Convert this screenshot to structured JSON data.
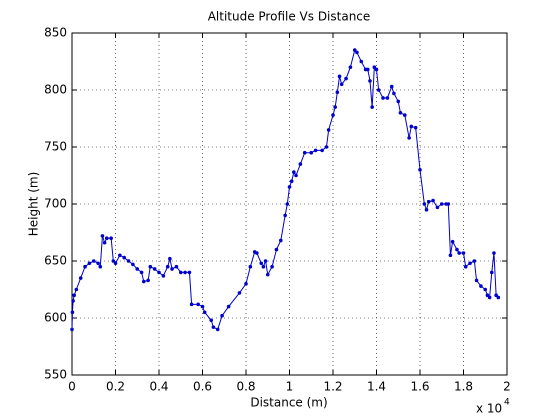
{
  "chart_data": {
    "type": "line",
    "title": "Altitude Profile Vs Distance",
    "x_label": "Distance (m)",
    "y_label": "Height (m)",
    "x_scale_label": {
      "base": "x 10",
      "exponent": "4"
    },
    "xlim": [
      0,
      2
    ],
    "ylim": [
      550,
      850
    ],
    "xticks": [
      0,
      0.2,
      0.4,
      0.6,
      0.8,
      1,
      1.2,
      1.4,
      1.6,
      1.8,
      2
    ],
    "yticks": [
      550,
      600,
      650,
      700,
      750,
      800,
      850
    ],
    "grid": true,
    "series": [
      {
        "color": "#0000cc",
        "x": [
          0,
          0.002,
          0.005,
          0.01,
          0.02,
          0.04,
          0.06,
          0.08,
          0.1,
          0.12,
          0.13,
          0.14,
          0.15,
          0.16,
          0.18,
          0.19,
          0.2,
          0.22,
          0.24,
          0.26,
          0.28,
          0.3,
          0.32,
          0.33,
          0.35,
          0.36,
          0.38,
          0.4,
          0.42,
          0.44,
          0.45,
          0.46,
          0.48,
          0.5,
          0.52,
          0.54,
          0.55,
          0.58,
          0.6,
          0.61,
          0.64,
          0.65,
          0.67,
          0.69,
          0.72,
          0.77,
          0.8,
          0.82,
          0.84,
          0.85,
          0.87,
          0.88,
          0.89,
          0.9,
          0.92,
          0.94,
          0.96,
          0.98,
          0.99,
          1.0,
          1.01,
          1.02,
          1.03,
          1.05,
          1.07,
          1.1,
          1.12,
          1.15,
          1.17,
          1.18,
          1.2,
          1.21,
          1.22,
          1.23,
          1.24,
          1.26,
          1.28,
          1.3,
          1.31,
          1.33,
          1.35,
          1.36,
          1.37,
          1.38,
          1.39,
          1.4,
          1.41,
          1.43,
          1.45,
          1.47,
          1.48,
          1.5,
          1.51,
          1.53,
          1.55,
          1.56,
          1.58,
          1.6,
          1.62,
          1.63,
          1.64,
          1.66,
          1.68,
          1.7,
          1.72,
          1.73,
          1.74,
          1.75,
          1.77,
          1.78,
          1.8,
          1.81,
          1.83,
          1.85,
          1.86,
          1.88,
          1.9,
          1.91,
          1.92,
          1.93,
          1.94,
          1.95,
          1.96
        ],
        "values": [
          590,
          605,
          615,
          620,
          625,
          635,
          645,
          648,
          650,
          648,
          645,
          672,
          666,
          670,
          670,
          650,
          648,
          655,
          653,
          650,
          647,
          643,
          640,
          632,
          633,
          645,
          643,
          640,
          637,
          645,
          652,
          643,
          645,
          640,
          640,
          640,
          612,
          612,
          610,
          605,
          598,
          592,
          590,
          602,
          610,
          622,
          630,
          645,
          658,
          657,
          648,
          645,
          650,
          638,
          645,
          660,
          668,
          690,
          700,
          715,
          720,
          728,
          725,
          735,
          745,
          745,
          747,
          747,
          750,
          765,
          778,
          785,
          798,
          812,
          805,
          810,
          820,
          835,
          833,
          825,
          818,
          818,
          808,
          785,
          820,
          818,
          800,
          793,
          793,
          803,
          797,
          790,
          780,
          778,
          758,
          768,
          767,
          730,
          700,
          695,
          702,
          703,
          697,
          700,
          700,
          700,
          655,
          667,
          660,
          657,
          657,
          645,
          648,
          650,
          633,
          628,
          625,
          620,
          618,
          640,
          657,
          620,
          618
        ]
      }
    ]
  }
}
